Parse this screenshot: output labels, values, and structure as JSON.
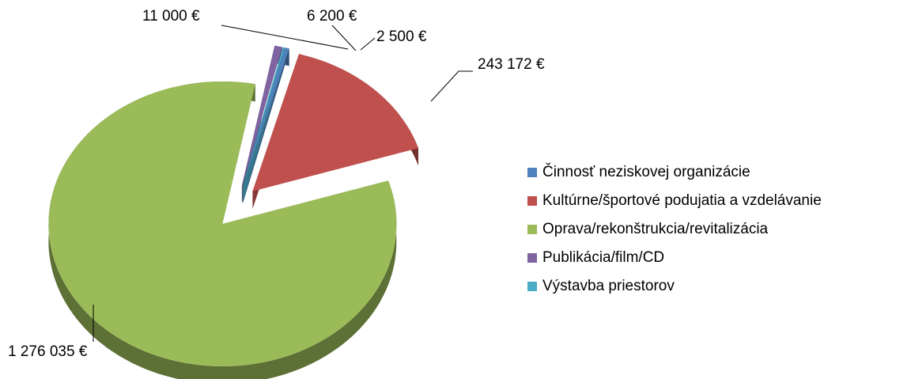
{
  "chart_data": {
    "type": "pie",
    "categories": [
      "Činnosť neziskovej organizácie",
      "Kultúrne/športové podujatia a vzdelávanie",
      "Oprava/rekonštrukcia/revitalizácia",
      "Publikácia/film/CD",
      "Výstavba priestorov"
    ],
    "values": [
      6200,
      243172,
      1276035,
      11000,
      2500
    ],
    "value_labels": [
      "6 200 €",
      "243 172 €",
      "1 276 035 €",
      "11 000 €",
      "2 500 €"
    ],
    "colors": [
      "#4f81bd",
      "#c0504d",
      "#9bbb59",
      "#8064a2",
      "#4bacc6"
    ],
    "legend": "right"
  }
}
